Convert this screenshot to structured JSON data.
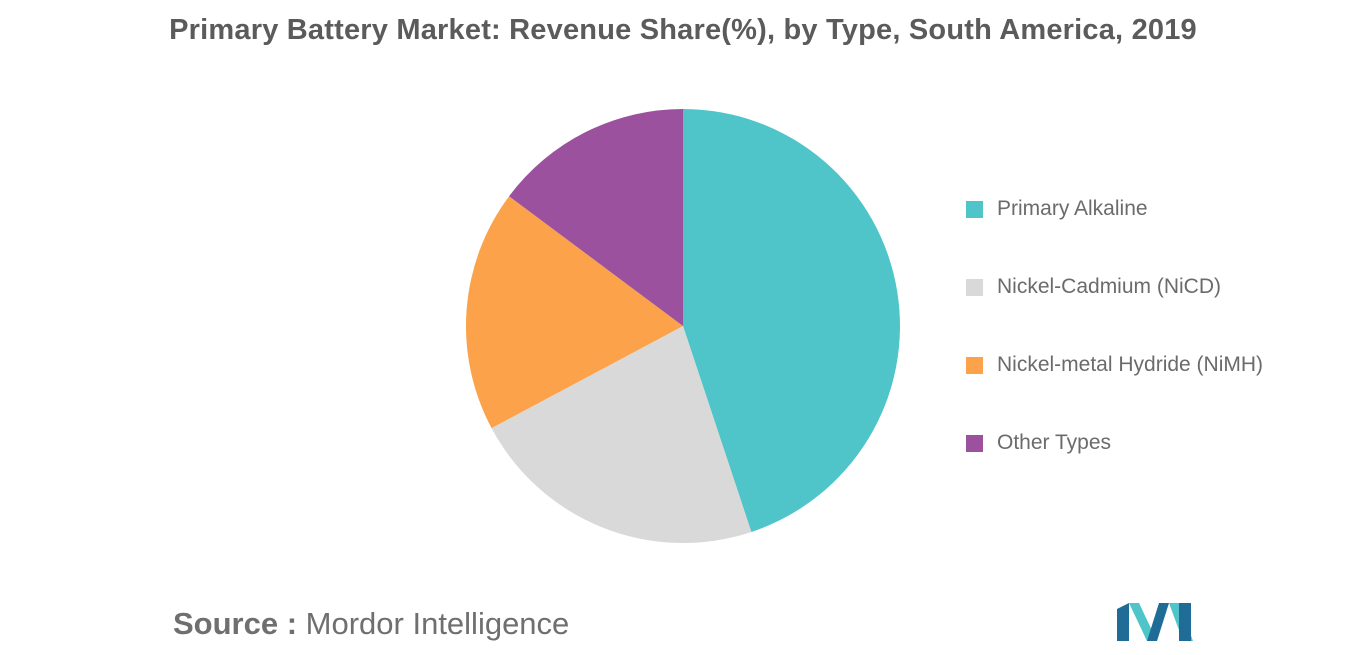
{
  "chart_data": {
    "type": "pie",
    "title": "Primary Battery Market: Revenue Share(%), by Type, South America, 2019",
    "start_angle_deg": 0,
    "direction": "clockwise",
    "labels_on_slices": false,
    "legend_position": "right",
    "slices": [
      {
        "label": "Primary Alkaline",
        "value": 44.9,
        "color": "#4fc4c9"
      },
      {
        "label": "Nickel-Cadmium (NiCD)",
        "value": 22.3,
        "color": "#d9d9d9"
      },
      {
        "label": "Nickel-metal Hydride (NiMH)",
        "value": 18.0,
        "color": "#fba24b"
      },
      {
        "label": "Other Types",
        "value": 14.8,
        "color": "#9c519e"
      }
    ]
  },
  "source": {
    "prefix": "Source :",
    "name": "Mordor Intelligence"
  },
  "logo": {
    "icon": "mordor-intelligence-logo-icon",
    "colors": [
      "#1f6d96",
      "#4fc4c9"
    ]
  }
}
